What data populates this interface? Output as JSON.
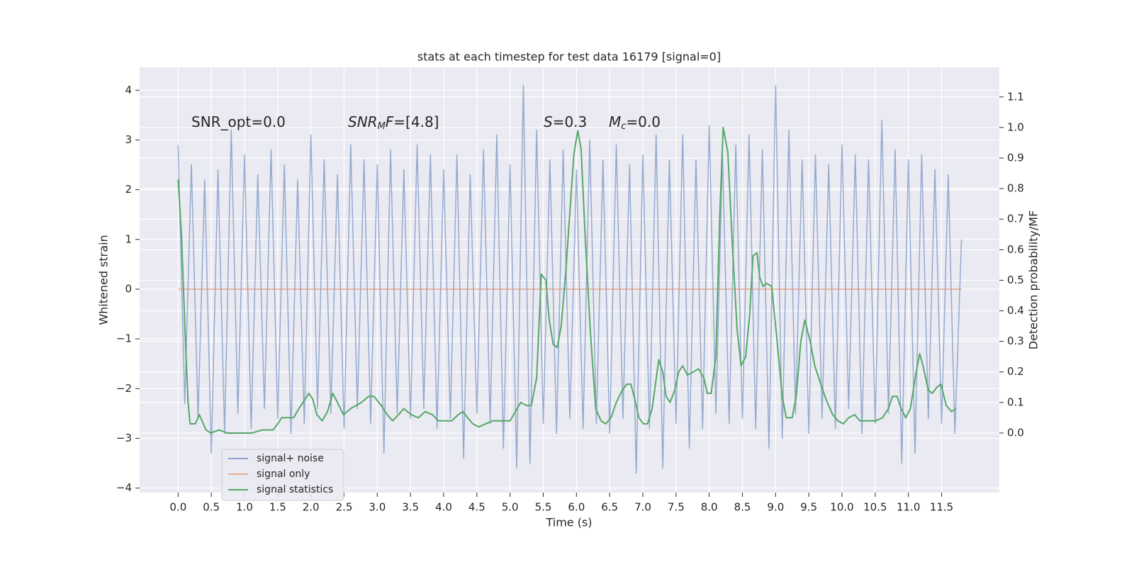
{
  "chart_data": {
    "type": "line",
    "title": "stats at each timestep for test data 16179 [signal=0]",
    "xlabel": "Time (s)",
    "ylabel": "Whitened strain",
    "y2label": "Detection probability/MF",
    "annotations": [
      [
        {
          "text": "SNR_opt=0.0",
          "style": "normal"
        }
      ],
      [
        {
          "text": "SNR",
          "style": "italic"
        },
        {
          "text": "M",
          "style": "sub"
        },
        {
          "text": "F",
          "style": "italic"
        },
        {
          "text": "=[4.8]",
          "style": "normal"
        }
      ],
      [
        {
          "text": "S",
          "style": "italic"
        },
        {
          "text": "=0.3",
          "style": "normal"
        }
      ],
      [
        {
          "text": "M",
          "style": "italic"
        },
        {
          "text": "c",
          "style": "sub"
        },
        {
          "text": "=0.0",
          "style": "normal"
        }
      ]
    ],
    "xlim": [
      -0.58,
      12.37
    ],
    "ylim": [
      -4.09,
      4.46
    ],
    "y2lim": [
      -0.195,
      1.197
    ],
    "xticks": [
      {
        "value": 0,
        "label": "0.0"
      },
      0.5,
      {
        "value": 1,
        "label": "1.0"
      },
      1.5,
      {
        "value": 2,
        "label": "2.0"
      },
      2.5,
      {
        "value": 3,
        "label": "3.0"
      },
      3.5,
      {
        "value": 4,
        "label": "4.0"
      },
      4.5,
      {
        "value": 5,
        "label": "5.0"
      },
      5.5,
      {
        "value": 6,
        "label": "6.0"
      },
      6.5,
      {
        "value": 7,
        "label": "7.0"
      },
      7.5,
      {
        "value": 8,
        "label": "8.0"
      },
      8.5,
      {
        "value": 9,
        "label": "9.0"
      },
      9.5,
      {
        "value": 10,
        "label": "10.0"
      },
      10.5,
      {
        "value": 11,
        "label": "11.0"
      },
      11.5
    ],
    "yticks": [
      {
        "value": -4,
        "label": "−4"
      },
      {
        "value": -3,
        "label": "−3"
      },
      {
        "value": -2,
        "label": "−2"
      },
      {
        "value": -1,
        "label": "−1"
      },
      0,
      1,
      2,
      3,
      4
    ],
    "y2ticks": [
      {
        "value": 0,
        "label": "0.0"
      },
      0.1,
      0.2,
      0.3,
      0.4,
      0.5,
      0.6,
      0.7,
      0.8,
      0.9,
      {
        "value": 1,
        "label": "1.0"
      },
      1.1
    ],
    "grid": true,
    "legend_loc": "lower left",
    "series": [
      {
        "name": "signal+ noise",
        "color": "#4c72b0",
        "x": [
          0.0,
          0.1,
          0.2,
          0.3,
          0.4,
          0.5,
          0.6,
          0.7,
          0.8,
          0.9,
          1.0,
          1.1,
          1.2,
          1.3,
          1.4,
          1.5,
          1.6,
          1.7,
          1.8,
          1.9,
          2.0,
          2.1,
          2.2,
          2.3,
          2.4,
          2.5,
          2.6,
          2.7,
          2.8,
          2.9,
          3.0,
          3.1,
          3.2,
          3.3,
          3.4,
          3.5,
          3.6,
          3.7,
          3.8,
          3.9,
          4.0,
          4.1,
          4.2,
          4.3,
          4.4,
          4.5,
          4.6,
          4.7,
          4.8,
          4.9,
          5.0,
          5.1,
          5.2,
          5.3,
          5.4,
          5.5,
          5.6,
          5.7,
          5.8,
          5.9,
          6.0,
          6.1,
          6.2,
          6.3,
          6.4,
          6.5,
          6.6,
          6.7,
          6.8,
          6.9,
          7.0,
          7.1,
          7.2,
          7.3,
          7.4,
          7.5,
          7.6,
          7.7,
          7.8,
          7.9,
          8.0,
          8.1,
          8.2,
          8.3,
          8.4,
          8.5,
          8.6,
          8.7,
          8.8,
          8.9,
          9.0,
          9.1,
          9.2,
          9.3,
          9.4,
          9.5,
          9.6,
          9.7,
          9.8,
          9.9,
          10.0,
          10.1,
          10.2,
          10.3,
          10.4,
          10.5,
          10.6,
          10.7,
          10.8,
          10.9,
          11.0,
          11.1,
          11.2,
          11.3,
          11.4,
          11.5,
          11.6,
          11.7,
          11.8
        ],
        "values": [
          2.9,
          -2.3,
          2.5,
          -2.6,
          2.2,
          -3.3,
          2.4,
          -2.9,
          3.2,
          -2.5,
          2.7,
          -2.8,
          2.3,
          -2.4,
          2.8,
          -2.6,
          2.5,
          -2.9,
          2.2,
          -2.7,
          3.1,
          -2.4,
          2.6,
          -2.5,
          2.3,
          -2.8,
          2.9,
          -2.4,
          2.6,
          -2.7,
          2.5,
          -3.3,
          2.8,
          -2.5,
          2.4,
          -2.6,
          2.9,
          -2.4,
          2.7,
          -2.8,
          2.4,
          -2.6,
          2.7,
          -3.4,
          2.3,
          -2.5,
          2.8,
          -2.7,
          3.1,
          -3.2,
          2.5,
          -3.6,
          4.1,
          -3.5,
          3.2,
          -2.7,
          2.6,
          -2.9,
          2.8,
          -2.6,
          2.4,
          -2.8,
          3.0,
          -2.7,
          2.6,
          -2.9,
          2.9,
          -2.6,
          2.5,
          -3.7,
          2.7,
          -2.8,
          3.1,
          -3.6,
          2.6,
          -2.7,
          3.1,
          -3.2,
          2.6,
          -2.8,
          3.3,
          -2.5,
          2.7,
          -2.7,
          2.9,
          -2.6,
          3.1,
          -2.8,
          2.8,
          -3.2,
          4.1,
          -3.0,
          3.2,
          -2.5,
          2.6,
          -2.9,
          2.7,
          -2.6,
          2.5,
          -2.8,
          2.9,
          -2.4,
          2.7,
          -2.9,
          2.6,
          -2.7,
          3.4,
          -2.5,
          2.8,
          -3.5,
          2.6,
          -3.3,
          2.7,
          -2.6,
          2.4,
          -2.7,
          2.3,
          -2.9,
          1.0
        ]
      },
      {
        "name": "signal only",
        "color": "#dd8452",
        "x": [
          0.0,
          11.8
        ],
        "values": [
          0,
          0
        ]
      },
      {
        "name": "signal statistics",
        "color": "#55a868",
        "axis": "y2",
        "x": [
          0.0,
          0.05,
          0.11,
          0.15,
          0.18,
          0.26,
          0.32,
          0.42,
          0.49,
          0.62,
          0.74,
          0.95,
          1.11,
          1.27,
          1.43,
          1.5,
          1.56,
          1.63,
          1.74,
          1.82,
          1.91,
          1.97,
          2.03,
          2.09,
          2.17,
          2.25,
          2.33,
          2.4,
          2.49,
          2.6,
          2.76,
          2.87,
          2.95,
          3.06,
          3.15,
          3.23,
          3.32,
          3.4,
          3.51,
          3.62,
          3.72,
          3.83,
          3.92,
          4.01,
          4.12,
          4.22,
          4.29,
          4.36,
          4.44,
          4.53,
          4.63,
          4.74,
          4.9,
          5.0,
          5.08,
          5.16,
          5.25,
          5.32,
          5.4,
          5.47,
          5.54,
          5.59,
          5.65,
          5.71,
          5.77,
          5.84,
          5.9,
          5.96,
          6.02,
          6.07,
          6.13,
          6.21,
          6.29,
          6.37,
          6.44,
          6.52,
          6.6,
          6.69,
          6.76,
          6.82,
          6.88,
          6.94,
          7.01,
          7.07,
          7.14,
          7.19,
          7.24,
          7.3,
          7.35,
          7.41,
          7.48,
          7.54,
          7.6,
          7.67,
          7.76,
          7.84,
          7.92,
          7.97,
          8.03,
          8.1,
          8.16,
          8.21,
          8.28,
          8.35,
          8.42,
          8.48,
          8.55,
          8.61,
          8.66,
          8.72,
          8.76,
          8.81,
          8.86,
          8.94,
          9.01,
          9.1,
          9.16,
          9.25,
          9.31,
          9.38,
          9.44,
          9.52,
          9.59,
          9.68,
          9.76,
          9.86,
          9.94,
          10.02,
          10.1,
          10.19,
          10.27,
          10.38,
          10.51,
          10.61,
          10.7,
          10.76,
          10.83,
          10.89,
          10.96,
          11.03,
          11.11,
          11.17,
          11.22,
          11.3,
          11.36,
          11.43,
          11.49,
          11.57,
          11.65,
          11.72
        ],
        "values": [
          0.83,
          0.65,
          0.3,
          0.1,
          0.03,
          0.03,
          0.06,
          0.01,
          0.0,
          0.01,
          0.0,
          0.0,
          0.0,
          0.01,
          0.01,
          0.03,
          0.05,
          0.05,
          0.05,
          0.08,
          0.11,
          0.13,
          0.11,
          0.06,
          0.04,
          0.07,
          0.13,
          0.1,
          0.06,
          0.08,
          0.1,
          0.12,
          0.12,
          0.09,
          0.06,
          0.04,
          0.06,
          0.08,
          0.06,
          0.05,
          0.07,
          0.06,
          0.04,
          0.04,
          0.04,
          0.06,
          0.07,
          0.05,
          0.03,
          0.02,
          0.03,
          0.04,
          0.04,
          0.04,
          0.07,
          0.1,
          0.09,
          0.09,
          0.18,
          0.52,
          0.5,
          0.37,
          0.29,
          0.28,
          0.35,
          0.53,
          0.72,
          0.91,
          0.99,
          0.93,
          0.65,
          0.33,
          0.08,
          0.04,
          0.03,
          0.05,
          0.1,
          0.14,
          0.16,
          0.16,
          0.11,
          0.05,
          0.03,
          0.03,
          0.08,
          0.16,
          0.24,
          0.2,
          0.12,
          0.1,
          0.14,
          0.2,
          0.22,
          0.19,
          0.2,
          0.21,
          0.18,
          0.13,
          0.13,
          0.25,
          0.72,
          1.0,
          0.92,
          0.61,
          0.34,
          0.22,
          0.25,
          0.39,
          0.58,
          0.59,
          0.51,
          0.48,
          0.49,
          0.48,
          0.33,
          0.12,
          0.05,
          0.05,
          0.12,
          0.3,
          0.37,
          0.3,
          0.22,
          0.16,
          0.11,
          0.06,
          0.04,
          0.03,
          0.05,
          0.06,
          0.04,
          0.04,
          0.04,
          0.05,
          0.08,
          0.12,
          0.12,
          0.08,
          0.05,
          0.08,
          0.19,
          0.26,
          0.22,
          0.14,
          0.13,
          0.15,
          0.16,
          0.09,
          0.07,
          0.08
        ]
      }
    ]
  }
}
